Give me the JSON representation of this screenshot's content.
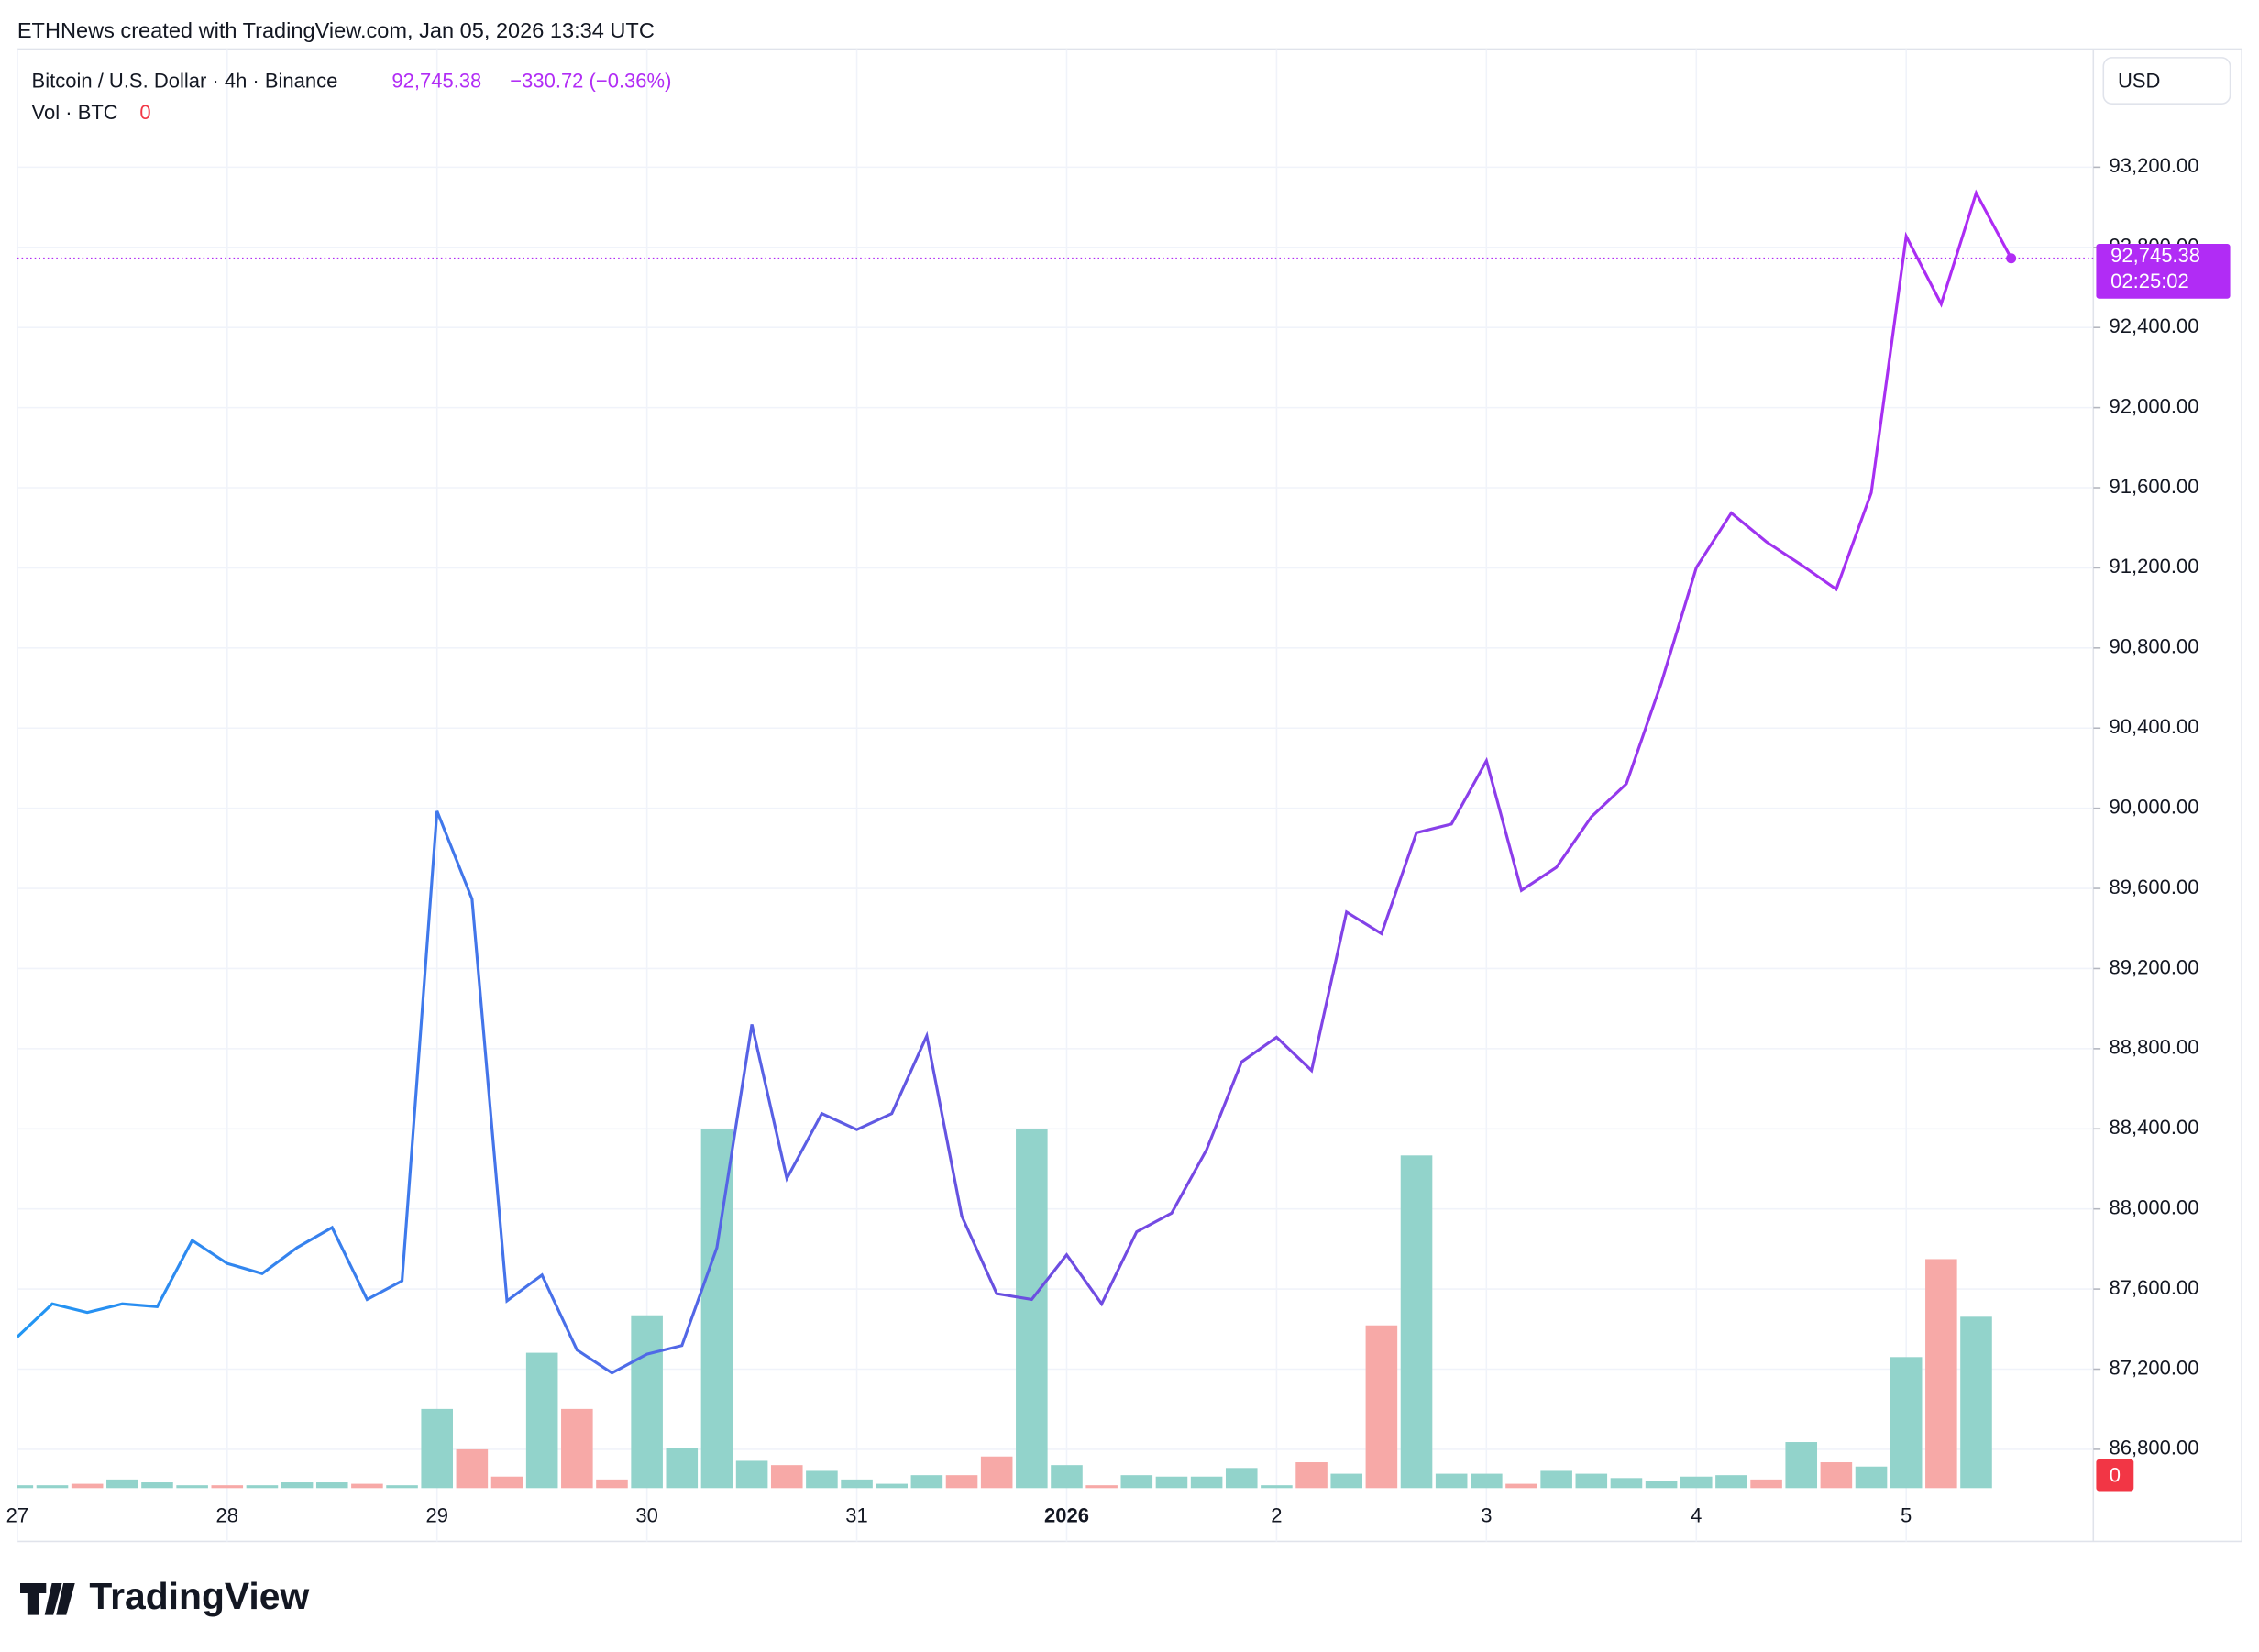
{
  "chart_data": {
    "type": "line",
    "credit": "ETHNews created with TradingView.com, Jan 05, 2026 13:34 UTC",
    "symbol": "Bitcoin / U.S. Dollar · 4h · Binance",
    "last_price": "92,745.38",
    "change": "−330.72 (−0.36%)",
    "volume_label": "Vol · BTC",
    "volume_value": "0",
    "currency": "USD",
    "countdown": "02:25:02",
    "brand": "TradingView",
    "line_gradient": [
      "#2196f3",
      "#6a4fe0",
      "#b02af5"
    ],
    "price_color": "#b12cf5",
    "up_color": "#92d3cb",
    "down_color": "#f7a9a7",
    "series": [
      {
        "name": "Bitcoin / U.S. Dollar",
        "values": [
          87361,
          87526,
          87483,
          87526,
          87512,
          87843,
          87728,
          87677,
          87807,
          87907,
          87548,
          87641,
          89986,
          89547,
          87541,
          87670,
          87296,
          87181,
          87275,
          87318,
          87807,
          88921,
          88152,
          88476,
          88396,
          88476,
          88864,
          87965,
          87577,
          87548,
          87771,
          87526,
          87886,
          87979,
          88296,
          88734,
          88857,
          88691,
          89482,
          89374,
          89878,
          89921,
          90237,
          89590,
          89705,
          89957,
          90122,
          90626,
          91201,
          91474,
          91330,
          91215,
          91093,
          91575,
          92855,
          92517,
          93071,
          92745.38
        ]
      }
    ],
    "volume": [
      2,
      2,
      3,
      6,
      4,
      2,
      2,
      2,
      4,
      4,
      3,
      2,
      55,
      27,
      8,
      94,
      55,
      6,
      120,
      28,
      249,
      19,
      16,
      12,
      6,
      3,
      9,
      9,
      22,
      249,
      16,
      2,
      9,
      8,
      8,
      14,
      2,
      18,
      10,
      113,
      231,
      10,
      10,
      3,
      12,
      10,
      7,
      5,
      8,
      9,
      6,
      32,
      18,
      15,
      91,
      159,
      119,
      0
    ],
    "volume_up": [
      true,
      true,
      false,
      true,
      true,
      true,
      false,
      true,
      true,
      true,
      false,
      true,
      true,
      false,
      false,
      true,
      false,
      false,
      true,
      true,
      true,
      true,
      false,
      true,
      true,
      true,
      true,
      false,
      false,
      true,
      true,
      false,
      true,
      true,
      true,
      true,
      true,
      false,
      true,
      false,
      true,
      true,
      true,
      false,
      true,
      true,
      true,
      true,
      true,
      true,
      false,
      true,
      false,
      true,
      true,
      false,
      true,
      false
    ],
    "ylim": [
      86606,
      93790
    ],
    "yticks": [
      {
        "value": 86800,
        "label": "86,800.00"
      },
      {
        "value": 87200,
        "label": "87,200.00"
      },
      {
        "value": 87600,
        "label": "87,600.00"
      },
      {
        "value": 88000,
        "label": "88,000.00"
      },
      {
        "value": 88400,
        "label": "88,400.00"
      },
      {
        "value": 88800,
        "label": "88,800.00"
      },
      {
        "value": 89200,
        "label": "89,200.00"
      },
      {
        "value": 89600,
        "label": "89,600.00"
      },
      {
        "value": 90000,
        "label": "90,000.00"
      },
      {
        "value": 90400,
        "label": "90,400.00"
      },
      {
        "value": 90800,
        "label": "90,800.00"
      },
      {
        "value": 91200,
        "label": "91,200.00"
      },
      {
        "value": 91600,
        "label": "91,600.00"
      },
      {
        "value": 92000,
        "label": "92,000.00"
      },
      {
        "value": 92400,
        "label": "92,400.00"
      },
      {
        "value": 92800,
        "label": "92,800.00"
      },
      {
        "value": 93200,
        "label": "93,200.00"
      }
    ],
    "xticks": [
      {
        "value": 0,
        "label": "27"
      },
      {
        "value": 6,
        "label": "28"
      },
      {
        "value": 12,
        "label": "29"
      },
      {
        "value": 18,
        "label": "30"
      },
      {
        "value": 24,
        "label": "31"
      },
      {
        "value": 30,
        "label": "2026"
      },
      {
        "value": 36,
        "label": "2"
      },
      {
        "value": 42,
        "label": "3"
      },
      {
        "value": 48,
        "label": "4"
      },
      {
        "value": 54,
        "label": "5"
      }
    ],
    "grid": true
  }
}
